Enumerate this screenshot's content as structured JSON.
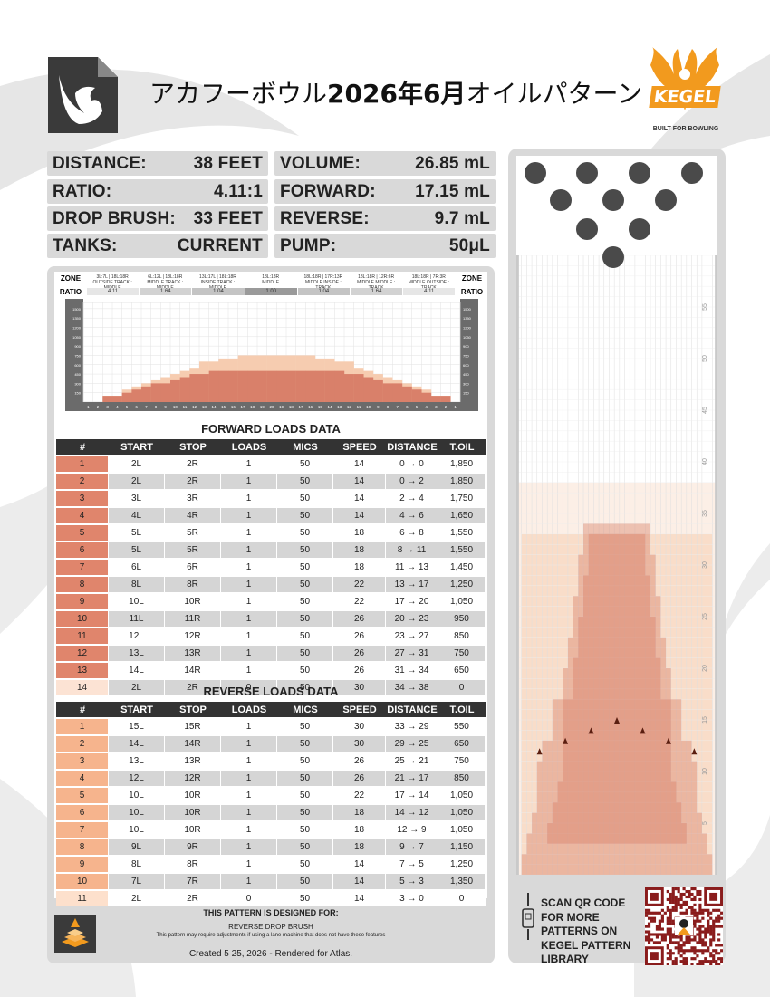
{
  "title": {
    "main": "アカフーボウル",
    "year_month": "2026年6月",
    "suffix": "オイルパターン"
  },
  "brand": {
    "logo": "KEGEL",
    "tagline": "BUILT FOR BOWLING"
  },
  "stats": [
    {
      "label": "DISTANCE:",
      "value": "38 FEET"
    },
    {
      "label": "VOLUME:",
      "value": "26.85 mL"
    },
    {
      "label": "RATIO:",
      "value": "4.11:1"
    },
    {
      "label": "FORWARD:",
      "value": "17.15 mL"
    },
    {
      "label": "DROP BRUSH:",
      "value": "33 FEET"
    },
    {
      "label": "REVERSE:",
      "value": "9.7 mL"
    },
    {
      "label": "TANKS:",
      "value": "CURRENT"
    },
    {
      "label": "PUMP:",
      "value": "50μL"
    }
  ],
  "zones": {
    "left_label_1": "ZONE",
    "left_label_2": "RATIO",
    "right_label_1": "ZONE",
    "right_label_2": "RATIO",
    "items": [
      {
        "boards": "3L:7L | 18L:18R",
        "name": "OUTSIDE TRACK : MIDDLE",
        "ratio": "4.11"
      },
      {
        "boards": "6L:12L | 18L:18R",
        "name": "MIDDLE TRACK : MIDDLE",
        "ratio": "1.64"
      },
      {
        "boards": "13L:17L | 18L:18R",
        "name": "INSIDE TRACK : MIDDLE",
        "ratio": "1.04"
      },
      {
        "boards": "18L:18R",
        "name": "MIDDLE",
        "ratio": "1.00"
      },
      {
        "boards": "18L:18R | 17R:13R",
        "name": "MIDDLE INSIDE : TRACK",
        "ratio": "1.04"
      },
      {
        "boards": "18L:18R | 12R:6R",
        "name": "MIDDLE MIDDLE : TRACK",
        "ratio": "1.64"
      },
      {
        "boards": "18L:18R | 7R:3R",
        "name": "MIDDLE OUTSIDE : TRACK",
        "ratio": "4.11"
      }
    ]
  },
  "chart_data": {
    "type": "bar",
    "yticks": [
      "1500",
      "1350",
      "1200",
      "1050",
      "900",
      "750",
      "600",
      "450",
      "300",
      "150"
    ],
    "board_labels": [
      "1",
      "2",
      "3",
      "4",
      "5",
      "6",
      "7",
      "8",
      "9",
      "10",
      "11",
      "12",
      "13",
      "14",
      "15",
      "16",
      "17",
      "18",
      "19",
      "20",
      "19",
      "18",
      "17",
      "16",
      "15",
      "14",
      "13",
      "12",
      "11",
      "10",
      "9",
      "8",
      "7",
      "6",
      "5",
      "4",
      "3",
      "2",
      "1"
    ],
    "series": [
      {
        "values": [
          0,
          0,
          100,
          100,
          150,
          200,
          250,
          300,
          300,
          350,
          400,
          450,
          450,
          500,
          500,
          500,
          500,
          500,
          500,
          500,
          500,
          500,
          500,
          500,
          500,
          500,
          500,
          450,
          450,
          400,
          350,
          300,
          300,
          250,
          200,
          150,
          100,
          100,
          0
        ]
      },
      {
        "values": [
          0,
          0,
          100,
          100,
          200,
          250,
          300,
          350,
          400,
          450,
          500,
          550,
          650,
          650,
          700,
          700,
          750,
          750,
          750,
          750,
          750,
          750,
          750,
          750,
          700,
          700,
          650,
          650,
          550,
          500,
          450,
          400,
          350,
          300,
          250,
          200,
          100,
          100,
          0
        ]
      }
    ],
    "ylim": [
      0,
      1600
    ]
  },
  "forward": {
    "title": "FORWARD LOADS DATA",
    "headers": [
      "#",
      "START",
      "STOP",
      "LOADS",
      "MICS",
      "SPEED",
      "DISTANCE",
      "T.OIL"
    ],
    "rows": [
      [
        "1",
        "2L",
        "2R",
        "1",
        "50",
        "14",
        "0 → 0",
        "1,850"
      ],
      [
        "2",
        "2L",
        "2R",
        "1",
        "50",
        "14",
        "0 → 2",
        "1,850"
      ],
      [
        "3",
        "3L",
        "3R",
        "1",
        "50",
        "14",
        "2 → 4",
        "1,750"
      ],
      [
        "4",
        "4L",
        "4R",
        "1",
        "50",
        "14",
        "4 → 6",
        "1,650"
      ],
      [
        "5",
        "5L",
        "5R",
        "1",
        "50",
        "18",
        "6 → 8",
        "1,550"
      ],
      [
        "6",
        "5L",
        "5R",
        "1",
        "50",
        "18",
        "8 → 11",
        "1,550"
      ],
      [
        "7",
        "6L",
        "6R",
        "1",
        "50",
        "18",
        "11 → 13",
        "1,450"
      ],
      [
        "8",
        "8L",
        "8R",
        "1",
        "50",
        "22",
        "13 → 17",
        "1,250"
      ],
      [
        "9",
        "10L",
        "10R",
        "1",
        "50",
        "22",
        "17 → 20",
        "1,050"
      ],
      [
        "10",
        "11L",
        "11R",
        "1",
        "50",
        "26",
        "20 → 23",
        "950"
      ],
      [
        "11",
        "12L",
        "12R",
        "1",
        "50",
        "26",
        "23 → 27",
        "850"
      ],
      [
        "12",
        "13L",
        "13R",
        "1",
        "50",
        "26",
        "27 → 31",
        "750"
      ],
      [
        "13",
        "14L",
        "14R",
        "1",
        "50",
        "26",
        "31 → 34",
        "650"
      ],
      [
        "14",
        "2L",
        "2R",
        "0",
        "50",
        "30",
        "34 → 38",
        "0"
      ]
    ]
  },
  "reverse": {
    "title": "REVERSE LOADS DATA",
    "headers": [
      "#",
      "START",
      "STOP",
      "LOADS",
      "MICS",
      "SPEED",
      "DISTANCE",
      "T.OIL"
    ],
    "rows": [
      [
        "1",
        "15L",
        "15R",
        "1",
        "50",
        "30",
        "33 → 29",
        "550"
      ],
      [
        "2",
        "14L",
        "14R",
        "1",
        "50",
        "30",
        "29 → 25",
        "650"
      ],
      [
        "3",
        "13L",
        "13R",
        "1",
        "50",
        "26",
        "25 → 21",
        "750"
      ],
      [
        "4",
        "12L",
        "12R",
        "1",
        "50",
        "26",
        "21 → 17",
        "850"
      ],
      [
        "5",
        "10L",
        "10R",
        "1",
        "50",
        "22",
        "17 → 14",
        "1,050"
      ],
      [
        "6",
        "10L",
        "10R",
        "1",
        "50",
        "18",
        "14 → 12",
        "1,050"
      ],
      [
        "7",
        "10L",
        "10R",
        "1",
        "50",
        "18",
        "12 → 9",
        "1,050"
      ],
      [
        "8",
        "9L",
        "9R",
        "1",
        "50",
        "18",
        "9 → 7",
        "1,150"
      ],
      [
        "9",
        "8L",
        "8R",
        "1",
        "50",
        "14",
        "7 → 5",
        "1,250"
      ],
      [
        "10",
        "7L",
        "7R",
        "1",
        "50",
        "14",
        "5 → 3",
        "1,350"
      ],
      [
        "11",
        "2L",
        "2R",
        "0",
        "50",
        "14",
        "3 → 0",
        "0"
      ]
    ]
  },
  "footer": {
    "designed_for": "THIS PATTERN IS DESIGNED FOR:",
    "feature": "REVERSE DROP BRUSH",
    "note": "This pattern may require adjustments if using a lane machine that does not have these features",
    "created": "Created 5 25, 2026 - Rendered for Atlas."
  },
  "lane": {
    "feet_labels": [
      "55",
      "50",
      "45",
      "40",
      "35",
      "30",
      "25",
      "20",
      "15",
      "10",
      "5"
    ],
    "pattern_distance_ft": 38,
    "drop_brush_ft": 33
  },
  "qr": {
    "text": "SCAN QR CODE FOR MORE PATTERNS ON KEGEL PATTERN LIBRARY"
  },
  "colors": {
    "dark_oil": "#d9806a",
    "light_oil": "#f6ccb0",
    "header": "#333333",
    "panel": "#d9d9d9",
    "accent": "#f29a1e"
  }
}
